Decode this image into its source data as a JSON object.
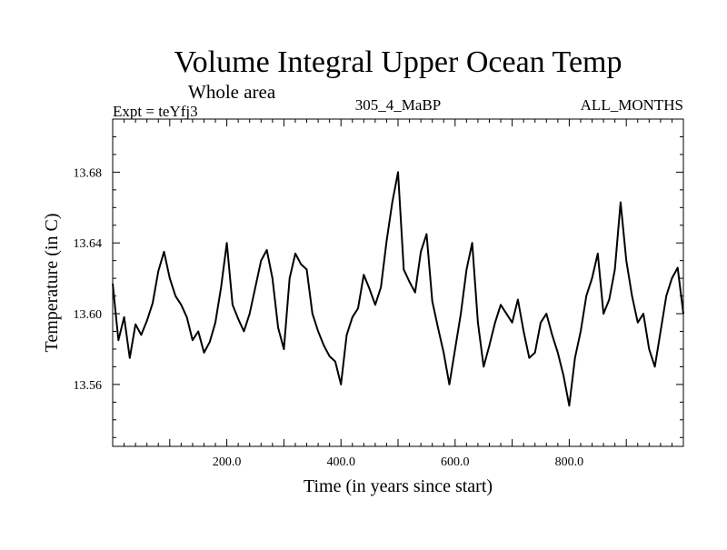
{
  "chart_data": {
    "type": "line",
    "title": "Volume Integral Upper Ocean Temp",
    "subtitle": "Whole area",
    "experiment_label": "Expt = teYfj3",
    "run_label": "305_4_MaBP",
    "months_label": "ALL_MONTHS",
    "xlabel": "Time (in years since start)",
    "ylabel": "Temperature (in C)",
    "xlim": [
      0,
      1000
    ],
    "ylim": [
      13.525,
      13.71
    ],
    "x_ticks": [
      200,
      400,
      600,
      800
    ],
    "x_tick_labels": [
      "200.0",
      "400.0",
      "600.0",
      "800.0"
    ],
    "y_ticks": [
      13.56,
      13.6,
      13.64,
      13.68
    ],
    "y_tick_labels": [
      "13.56",
      "13.60",
      "13.64",
      "13.68"
    ],
    "grid": false,
    "series": [
      {
        "name": "Volume integral upper ocean temperature",
        "color": "#000000",
        "x": [
          0,
          10,
          20,
          30,
          40,
          50,
          60,
          70,
          80,
          90,
          100,
          110,
          120,
          130,
          140,
          150,
          160,
          170,
          180,
          190,
          200,
          210,
          220,
          230,
          240,
          250,
          260,
          270,
          280,
          290,
          300,
          310,
          320,
          330,
          340,
          350,
          360,
          370,
          380,
          390,
          400,
          410,
          420,
          430,
          440,
          450,
          460,
          470,
          480,
          490,
          500,
          510,
          520,
          530,
          540,
          550,
          560,
          570,
          580,
          590,
          600,
          610,
          620,
          630,
          640,
          650,
          660,
          670,
          680,
          690,
          700,
          710,
          720,
          730,
          740,
          750,
          760,
          770,
          780,
          790,
          800,
          810,
          820,
          830,
          840,
          850,
          860,
          870,
          880,
          890,
          900,
          910,
          920,
          930,
          940,
          950,
          960,
          970,
          980,
          990,
          1000
        ],
        "values": [
          13.617,
          13.585,
          13.598,
          13.575,
          13.594,
          13.588,
          13.596,
          13.606,
          13.624,
          13.635,
          13.62,
          13.61,
          13.605,
          13.598,
          13.585,
          13.59,
          13.578,
          13.584,
          13.595,
          13.615,
          13.64,
          13.605,
          13.597,
          13.59,
          13.6,
          13.615,
          13.63,
          13.636,
          13.62,
          13.592,
          13.58,
          13.62,
          13.634,
          13.628,
          13.625,
          13.6,
          13.59,
          13.582,
          13.576,
          13.573,
          13.56,
          13.588,
          13.598,
          13.603,
          13.622,
          13.614,
          13.605,
          13.615,
          13.641,
          13.663,
          13.68,
          13.625,
          13.618,
          13.612,
          13.635,
          13.645,
          13.607,
          13.592,
          13.578,
          13.56,
          13.58,
          13.6,
          13.625,
          13.64,
          13.595,
          13.57,
          13.582,
          13.595,
          13.605,
          13.6,
          13.595,
          13.608,
          13.59,
          13.575,
          13.578,
          13.595,
          13.6,
          13.588,
          13.578,
          13.565,
          13.548,
          13.575,
          13.59,
          13.61,
          13.62,
          13.634,
          13.6,
          13.608,
          13.625,
          13.663,
          13.63,
          13.61,
          13.595,
          13.6,
          13.58,
          13.57,
          13.59,
          13.61,
          13.62,
          13.626,
          13.6
        ]
      }
    ]
  }
}
